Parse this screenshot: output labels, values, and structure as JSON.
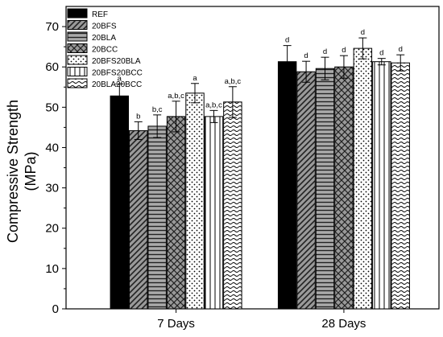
{
  "chart_data": {
    "type": "bar",
    "categories": [
      "7 Days",
      "28 Days"
    ],
    "ylabel_line1": "Compressive Strength",
    "ylabel_line2": "(MPa)",
    "ylim": [
      0,
      75
    ],
    "yticks": [
      0,
      10,
      20,
      30,
      40,
      50,
      60,
      70
    ],
    "grid": false,
    "legend_position": "top-left",
    "series": [
      {
        "name": "REF",
        "pattern": "solid",
        "values": [
          52.8,
          61.3
        ],
        "errors": [
          3.0,
          4.0
        ],
        "labels": [
          "a",
          "d"
        ]
      },
      {
        "name": "20BFS",
        "pattern": "diagonal",
        "values": [
          44.2,
          58.8
        ],
        "errors": [
          2.2,
          2.6
        ],
        "labels": [
          "b",
          "d"
        ]
      },
      {
        "name": "20BLA",
        "pattern": "horizontal",
        "values": [
          45.3,
          59.6
        ],
        "errors": [
          2.8,
          2.8
        ],
        "labels": [
          "b,c",
          "d"
        ]
      },
      {
        "name": "20BCC",
        "pattern": "crosshatch",
        "values": [
          47.7,
          60.0
        ],
        "errors": [
          3.8,
          2.8
        ],
        "labels": [
          "a,b,c",
          "d"
        ]
      },
      {
        "name": "20BFS20BLA",
        "pattern": "dots",
        "values": [
          53.5,
          64.6
        ],
        "errors": [
          2.4,
          2.6
        ],
        "labels": [
          "a",
          "d"
        ]
      },
      {
        "name": "20BFS20BCC",
        "pattern": "vertical",
        "values": [
          47.7,
          61.3
        ],
        "errors": [
          1.5,
          0.8
        ],
        "labels": [
          "a,b,c",
          "d"
        ]
      },
      {
        "name": "20BLA20BCC",
        "pattern": "wavy",
        "values": [
          51.3,
          61.0
        ],
        "errors": [
          3.8,
          2.0
        ],
        "labels": [
          "a,b,c",
          "d"
        ]
      }
    ]
  }
}
